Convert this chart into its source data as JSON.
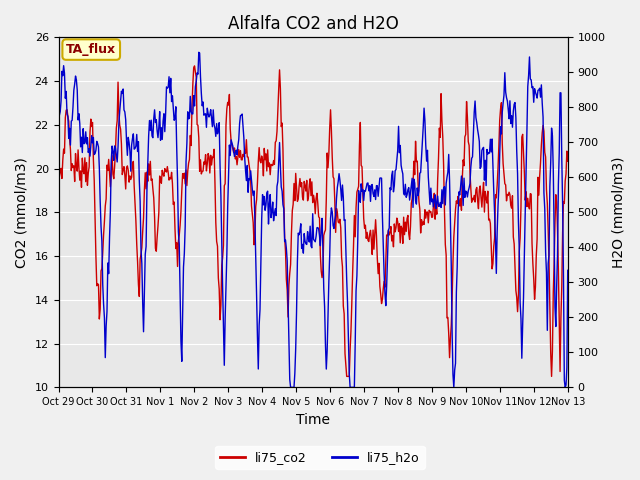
{
  "title": "Alfalfa CO2 and H2O",
  "xlabel": "Time",
  "ylabel_left": "CO2 (mmol/m3)",
  "ylabel_right": "H2O (mmol/m3)",
  "co2_ylim": [
    10,
    26
  ],
  "h2o_ylim": [
    0,
    1000
  ],
  "co2_yticks": [
    10,
    12,
    14,
    16,
    18,
    20,
    22,
    24,
    26
  ],
  "h2o_yticks": [
    0,
    100,
    200,
    300,
    400,
    500,
    600,
    700,
    800,
    900,
    1000
  ],
  "xtick_labels": [
    "Oct 29",
    "Oct 30",
    "Oct 31",
    "Nov 1",
    "Nov 2",
    "Nov 3",
    "Nov 4",
    "Nov 5",
    "Nov 6",
    "Nov 7",
    "Nov 8",
    "Nov 9",
    "Nov 10",
    "Nov 11",
    "Nov 12",
    "Nov 13"
  ],
  "co2_color": "#CC0000",
  "h2o_color": "#0000CC",
  "plot_bg": "#E8E8E8",
  "fig_bg": "#F0F0F0",
  "annotation_text": "TA_flux",
  "annotation_bg": "#FFFFCC",
  "annotation_border": "#CCAA00",
  "legend_labels": [
    "li75_co2",
    "li75_h2o"
  ],
  "linewidth": 1.0,
  "title_fontsize": 12,
  "axis_fontsize": 10,
  "tick_fontsize": 8,
  "n_days": 15,
  "n_points": 600
}
